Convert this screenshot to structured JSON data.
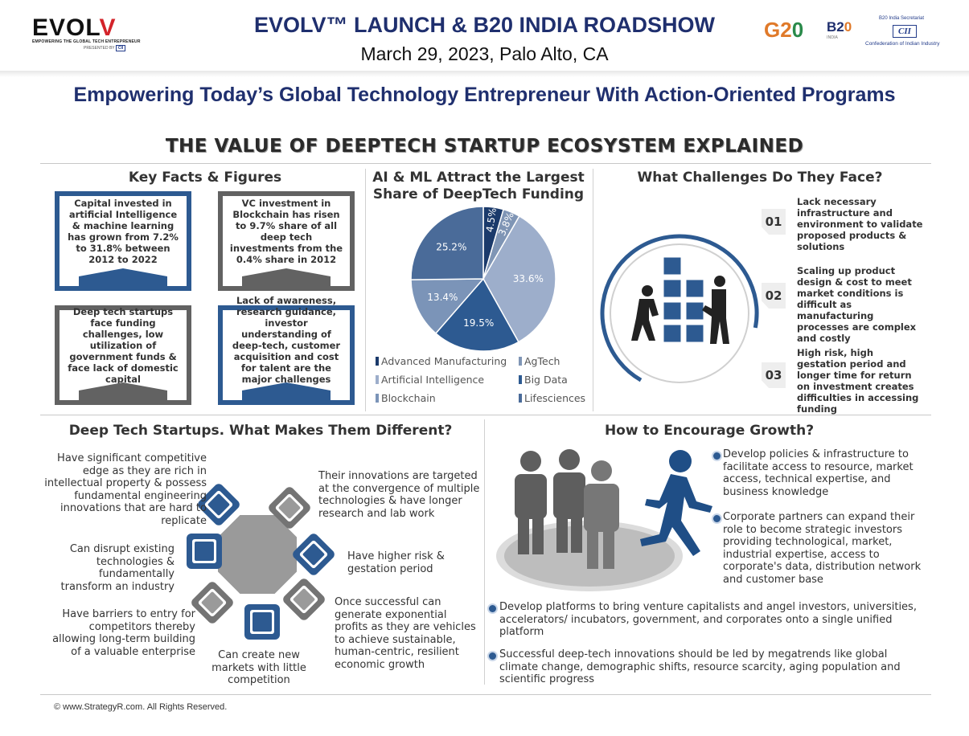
{
  "header": {
    "logo_text_a": "EVOL",
    "logo_text_b": "V",
    "logo_tagline": "EMPOWERING THE GLOBAL TECH ENTREPRENEUR",
    "logo_presented": "PRESENTED BY",
    "logo_cii": "CII",
    "title": "EVOLV™ LAUNCH & B20 INDIA ROADSHOW",
    "subtitle": "March 29, 2023, Palo Alto, CA",
    "g20_a": "G2",
    "g20_b": "0",
    "b20_a": "B2",
    "b20_b": "0",
    "b20_sub": "INDIA",
    "cii_secretariat": "B20 India Secretariat",
    "cii_logo": "CII",
    "cii_name": "Confederation of Indian Industry"
  },
  "banner": "Empowering Today’s Global Technology Entrepreneur With Action-Oriented Programs",
  "infographic_title": "THE VALUE OF DEEPTECH STARTUP ECOSYSTEM EXPLAINED",
  "facts": {
    "title": "Key Facts & Figures",
    "items": [
      "Capital invested in artificial Intelligence & machine learning has grown from 7.2% to 31.8% between 2012 to 2022",
      "VC investment in Blockchain has risen to 9.7% share of all deep tech investments from the 0.4% share in 2012",
      "Deep tech startups face funding challenges, low utilization of government funds & face lack of domestic capital",
      "Lack of awareness, research guidance, investor understanding of deep-tech, customer acquisition and cost for talent are the major challenges faced"
    ]
  },
  "chart_data": {
    "type": "pie",
    "title": "AI & ML Attract the Largest Share of DeepTech Funding",
    "categories": [
      "Advanced Manufacturing",
      "AgTech",
      "Artificial Intelligence",
      "Big Data",
      "Blockchain",
      "Lifesciences"
    ],
    "values": [
      4.5,
      3.8,
      33.6,
      19.5,
      13.4,
      25.2
    ],
    "labels": [
      "4.5%",
      "3.8%",
      "33.6%",
      "19.5%",
      "13.4%",
      "25.2%"
    ],
    "colors": [
      "#1b3a6b",
      "#7f95b5",
      "#9daecb",
      "#2d5a91",
      "#7b94b8",
      "#4a6b99"
    ],
    "legend_position": "bottom"
  },
  "challenges": {
    "title": "What Challenges Do They Face?",
    "items": [
      {
        "num": "01",
        "text": "Lack necessary infrastructure and environment to validate proposed products & solutions"
      },
      {
        "num": "02",
        "text": "Scaling up product design & cost to meet market conditions is difficult as manufacturing processes are complex and costly"
      },
      {
        "num": "03",
        "text": "High risk, high gestation period and longer time for return on investment creates difficulties in accessing funding"
      }
    ]
  },
  "different": {
    "title": "Deep Tech Startups. What Makes Them Different?",
    "items": [
      "Have significant competitive edge as they are rich in intellectual property & possess fundamental engineering innovations that are hard to replicate",
      "Their innovations are targeted at the convergence of multiple technologies & have longer research and lab work",
      "Can disrupt existing technologies & fundamentally transform an industry",
      "Have higher risk & gestation period",
      "Have barriers to entry for competitors thereby allowing long-term building of a valuable enterprise",
      "Once successful can generate exponential profits as they are vehicles to achieve sustainable, human-centric, resilient economic growth",
      "Can create new markets with little competition"
    ]
  },
  "growth": {
    "title": "How to Encourage Growth?",
    "items": [
      "Develop policies & infrastructure to facilitate access to resource, market access, technical expertise, and business knowledge",
      "Corporate partners can expand their role to become strategic investors providing  technological, market, industrial expertise, access to corporate's data, distribution network and customer base",
      "Develop platforms to bring venture capitalists and angel investors, universities, accelerators/ incubators, government, and corporates onto a single unified platform",
      "Successful deep-tech innovations should be led by megatrends like global climate change, demographic shifts, resource scarcity, aging population and scientific progress"
    ]
  },
  "footer": "© www.StrategyR.com. All Rights Reserved."
}
